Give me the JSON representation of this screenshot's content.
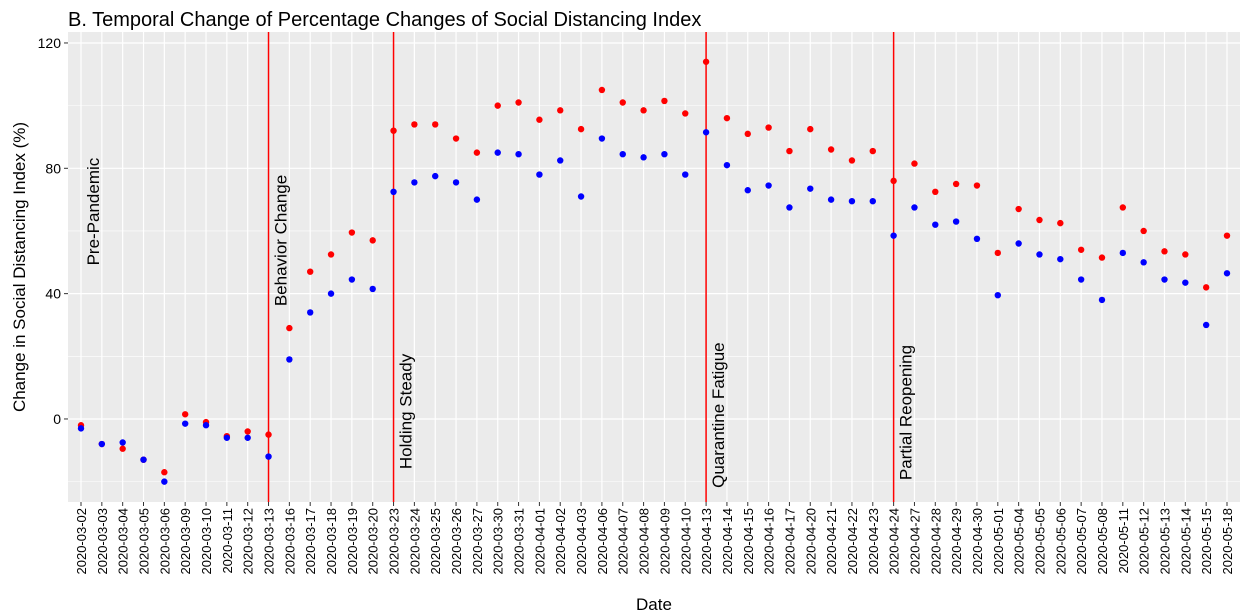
{
  "chart_data": {
    "type": "scatter",
    "title": "B. Temporal Change of Percentage Changes of Social Distancing Index",
    "x_label": "Date",
    "y_label": "Change in Social Distancing Index (%)",
    "categories": [
      "2020-03-02",
      "2020-03-03",
      "2020-03-04",
      "2020-03-05",
      "2020-03-06",
      "2020-03-09",
      "2020-03-10",
      "2020-03-11",
      "2020-03-12",
      "2020-03-13",
      "2020-03-16",
      "2020-03-17",
      "2020-03-18",
      "2020-03-19",
      "2020-03-20",
      "2020-03-23",
      "2020-03-24",
      "2020-03-25",
      "2020-03-26",
      "2020-03-27",
      "2020-03-30",
      "2020-03-31",
      "2020-04-01",
      "2020-04-02",
      "2020-04-03",
      "2020-04-06",
      "2020-04-07",
      "2020-04-08",
      "2020-04-09",
      "2020-04-10",
      "2020-04-13",
      "2020-04-14",
      "2020-04-15",
      "2020-04-16",
      "2020-04-17",
      "2020-04-20",
      "2020-04-21",
      "2020-04-22",
      "2020-04-23",
      "2020-04-24",
      "2020-04-27",
      "2020-04-28",
      "2020-04-29",
      "2020-04-30",
      "2020-05-01",
      "2020-05-04",
      "2020-05-05",
      "2020-05-06",
      "2020-05-07",
      "2020-05-08",
      "2020-05-11",
      "2020-05-12",
      "2020-05-13",
      "2020-05-14",
      "2020-05-15",
      "2020-05-18"
    ],
    "series": [
      {
        "color": "#ff0000",
        "values": [
          -2,
          -8,
          -9.5,
          -13,
          -17,
          1.5,
          -1,
          -5.5,
          -4,
          -5,
          29,
          47,
          52.5,
          59.5,
          57,
          92,
          94,
          94,
          89.5,
          85,
          100,
          101,
          95.5,
          98.5,
          92.5,
          105,
          101,
          98.5,
          101.5,
          97.5,
          114,
          96,
          91,
          93,
          85.5,
          92.5,
          86,
          82.5,
          85.5,
          76,
          81.5,
          72.5,
          75,
          74.5,
          53,
          67,
          63.5,
          62.5,
          54,
          51.5,
          67.5,
          60,
          53.5,
          52.5,
          42,
          58.5
        ]
      },
      {
        "color": "#0000ff",
        "values": [
          -3,
          -8,
          -7.5,
          -13,
          -20,
          -1.5,
          -2,
          -6,
          -6,
          -12,
          19,
          34,
          40,
          44.5,
          41.5,
          72.5,
          75.5,
          77.5,
          75.5,
          70,
          85,
          84.5,
          78,
          82.5,
          71,
          89.5,
          84.5,
          83.5,
          84.5,
          78,
          91.5,
          81,
          73,
          74.5,
          67.5,
          73.5,
          70,
          69.5,
          69.5,
          58.5,
          67.5,
          62,
          63,
          57.5,
          39.5,
          56,
          52.5,
          51,
          44.5,
          38,
          53,
          50,
          44.5,
          43.5,
          30,
          46.5
        ]
      }
    ],
    "vlines": [
      "2020-03-13",
      "2020-03-23",
      "2020-04-13",
      "2020-04-24"
    ],
    "vline_color": "#ff0000",
    "annotations": [
      {
        "label": "Pre-Pandemic",
        "x": "2020-03-02",
        "y": 49
      },
      {
        "label": "Behavior Change",
        "x": "2020-03-13",
        "y": 36
      },
      {
        "label": "Holding Steady",
        "x": "2020-03-23",
        "y": -16
      },
      {
        "label": "Quarantine Fatigue",
        "x": "2020-04-13",
        "y": -22
      },
      {
        "label": "Partial Reopening",
        "x": "2020-04-24",
        "y": -19.5
      }
    ],
    "ylim": [
      -26.5,
      123.5
    ],
    "yticks": [
      0,
      40,
      80,
      120
    ],
    "grid": true
  }
}
